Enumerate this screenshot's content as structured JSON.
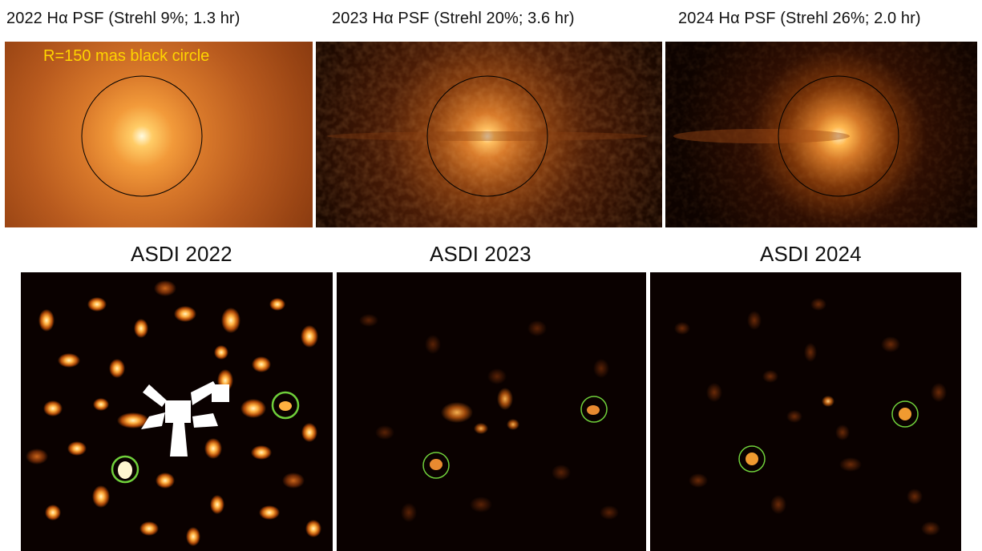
{
  "psf_panels": [
    {
      "title": "2022 Hα PSF (Strehl 9%; 1.3 hr)",
      "annotation": "R=150 mas black circle"
    },
    {
      "title": "2023 Hα PSF (Strehl 20%; 3.6 hr)"
    },
    {
      "title": "2024 Hα PSF (Strehl 26%; 2.0 hr)"
    }
  ],
  "asdi_panels": [
    {
      "title": "ASDI 2022"
    },
    {
      "title": "ASDI 2023"
    },
    {
      "title": "ASDI 2024"
    }
  ],
  "colors": {
    "annotation_text": "#ffd400",
    "circle_marker": "#6fcf3a",
    "ring": "#000000",
    "background_dark": "#0a0100"
  }
}
